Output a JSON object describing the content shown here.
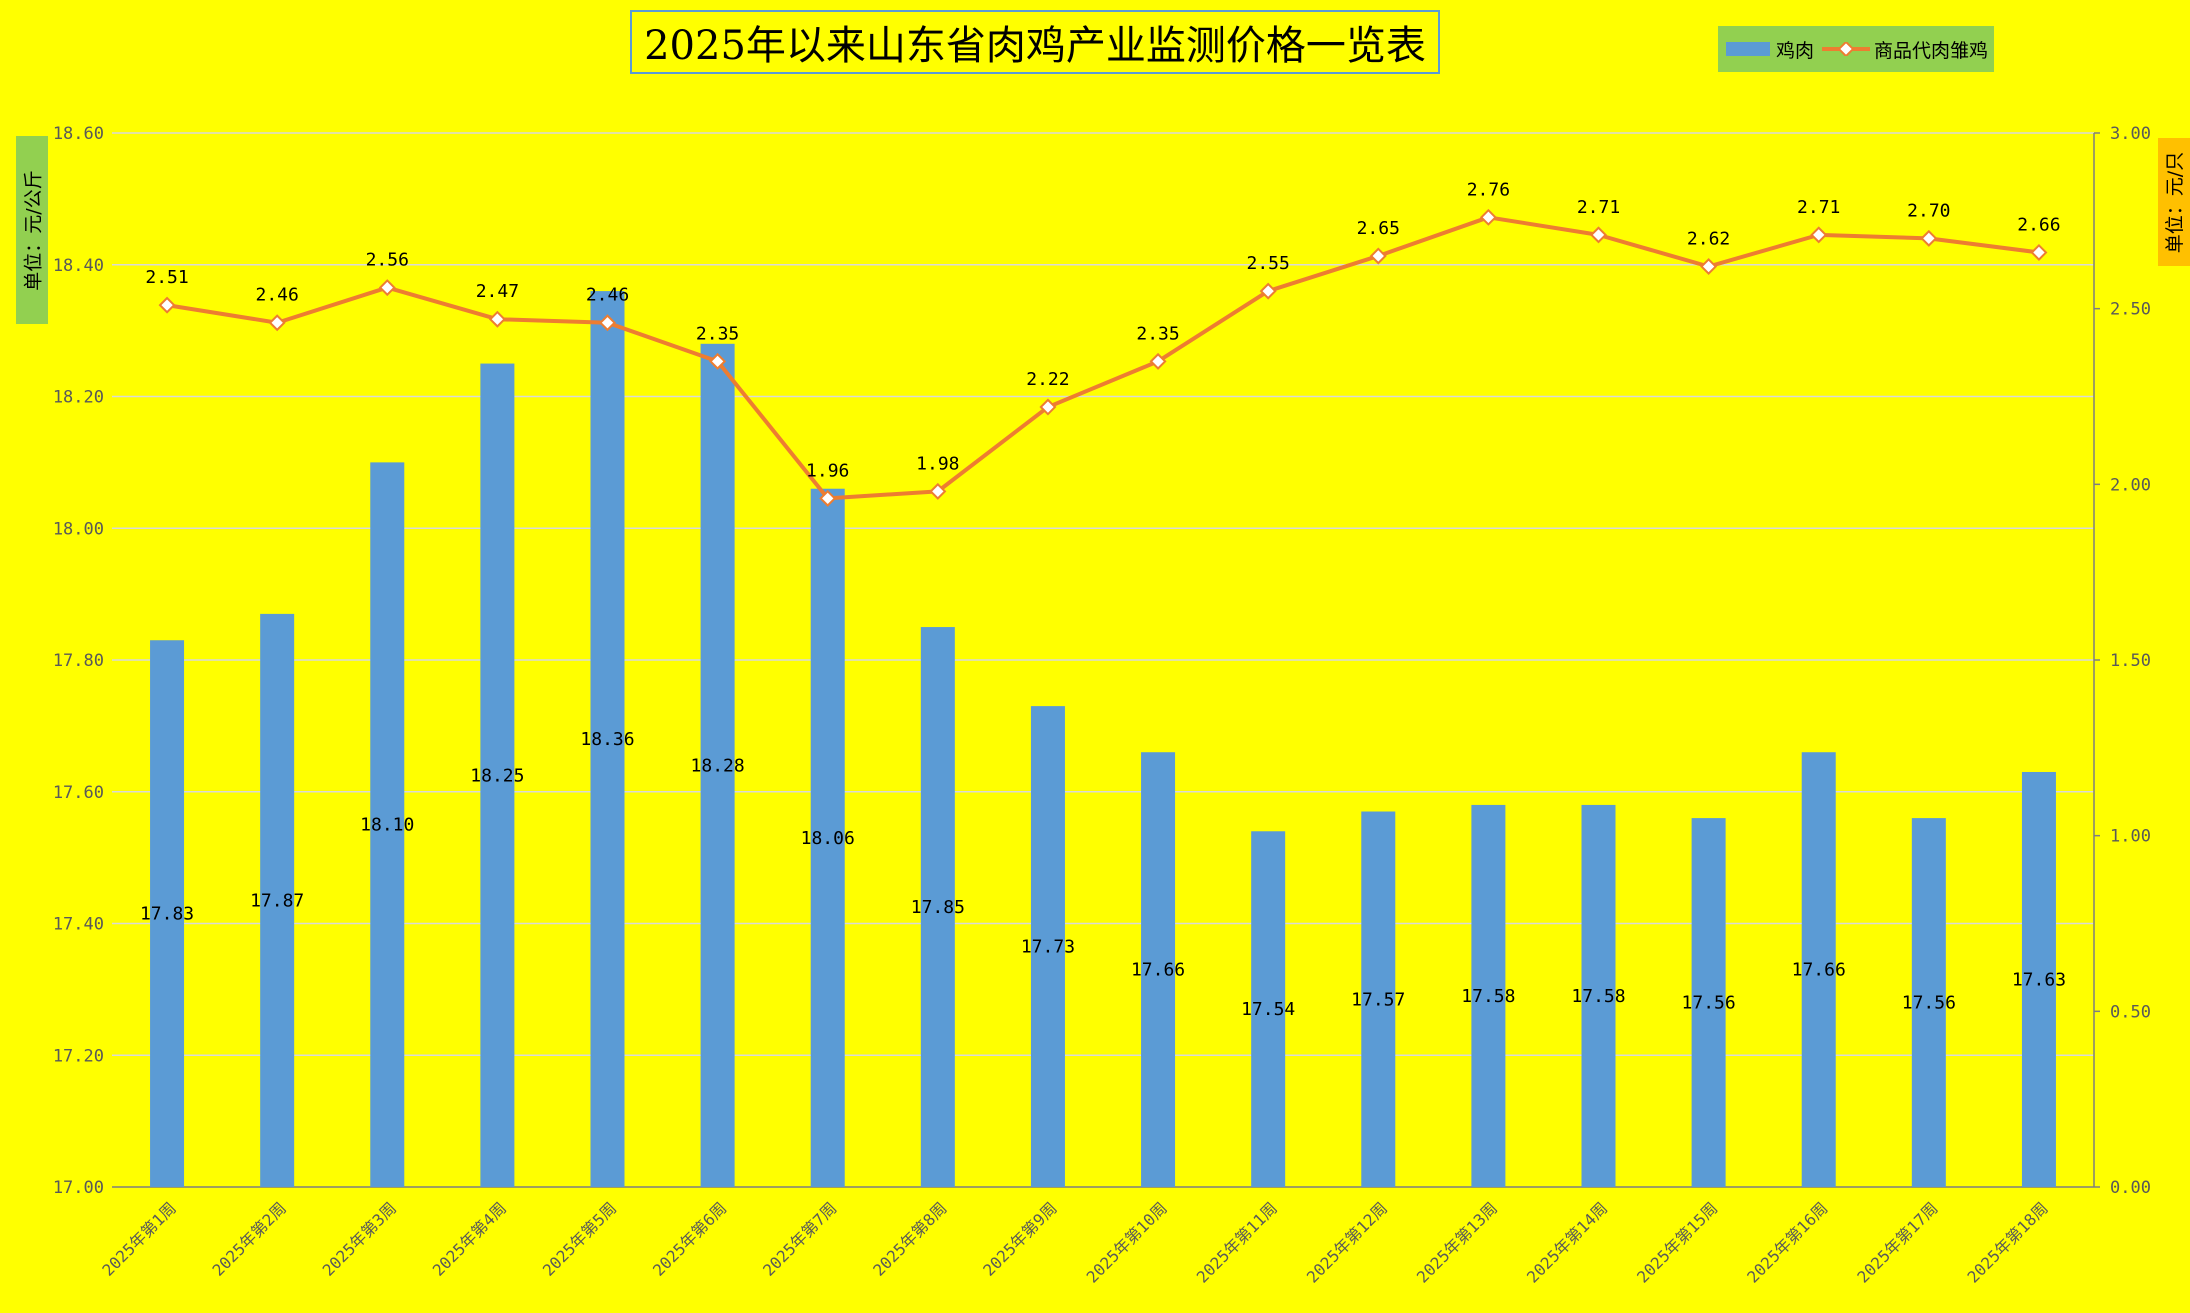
{
  "chart_data": {
    "type": "bar",
    "title": "2025年以来山东省肉鸡产业监测价格一览表",
    "categories": [
      "2025年第1周",
      "2025年第2周",
      "2025年第3周",
      "2025年第4周",
      "2025年第5周",
      "2025年第6周",
      "2025年第7周",
      "2025年第8周",
      "2025年第9周",
      "2025年第10周",
      "2025年第11周",
      "2025年第12周",
      "2025年第13周",
      "2025年第14周",
      "2025年第15周",
      "2025年第16周",
      "2025年第17周",
      "2025年第18周"
    ],
    "series": [
      {
        "name": "鸡肉",
        "type": "bar",
        "axis": "left",
        "color": "#5b9bd5",
        "values": [
          17.83,
          17.87,
          18.1,
          18.25,
          18.36,
          18.28,
          18.06,
          17.85,
          17.73,
          17.66,
          17.54,
          17.57,
          17.58,
          17.58,
          17.56,
          17.66,
          17.56,
          17.63
        ],
        "labels": [
          "17.83",
          "17.87",
          "18.10",
          "18.25",
          "18.36",
          "18.28",
          "18.06",
          "17.85",
          "17.73",
          "17.66",
          "17.54",
          "17.57",
          "17.58",
          "17.58",
          "17.56",
          "17.66",
          "17.56",
          "17.63"
        ]
      },
      {
        "name": "商品代肉雏鸡",
        "type": "line",
        "axis": "right",
        "color": "#ed7d31",
        "values": [
          2.51,
          2.46,
          2.56,
          2.47,
          2.46,
          2.35,
          1.96,
          1.98,
          2.22,
          2.35,
          2.55,
          2.65,
          2.76,
          2.71,
          2.62,
          2.71,
          2.7,
          2.66
        ],
        "labels": [
          "2.51",
          "2.46",
          "2.56",
          "2.47",
          "2.46",
          "2.35",
          "1.96",
          "1.98",
          "2.22",
          "2.35",
          "2.55",
          "2.65",
          "2.76",
          "2.71",
          "2.62",
          "2.71",
          "2.70",
          "2.66"
        ]
      }
    ],
    "left_axis": {
      "label": "单位：元/公斤",
      "range": [
        17.0,
        18.6
      ],
      "ticks": [
        17.0,
        17.2,
        17.4,
        17.6,
        17.8,
        18.0,
        18.2,
        18.4,
        18.6
      ],
      "tick_labels": [
        "17.00",
        "17.20",
        "17.40",
        "17.60",
        "17.80",
        "18.00",
        "18.20",
        "18.40",
        "18.60"
      ]
    },
    "right_axis": {
      "label": "单位：元/只",
      "range": [
        0,
        3.0
      ],
      "ticks": [
        0,
        0.5,
        1.0,
        1.5,
        2.0,
        2.5,
        3.0
      ],
      "tick_labels": [
        "0.00",
        "0.50",
        "1.00",
        "1.50",
        "2.00",
        "2.50",
        "3.00"
      ]
    },
    "grid": true,
    "legend_position": "top-right",
    "colors": {
      "background": "#ffff00",
      "bar": "#5b9bd5",
      "line": "#ed7d31",
      "left_unit_bg": "#92d050",
      "right_unit_bg": "#ffc000",
      "legend_bg": "#92d050"
    }
  }
}
